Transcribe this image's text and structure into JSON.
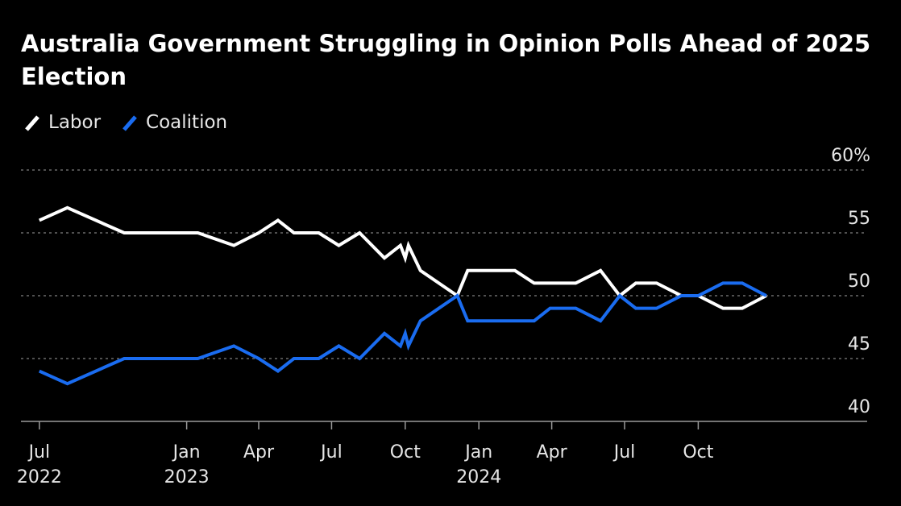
{
  "title": "Australia Government Struggling in Opinion Polls Ahead of 2025 Election",
  "chart_data": {
    "type": "line",
    "title": "Australia Government Struggling in Opinion Polls Ahead of 2025 Election",
    "xlabel": "",
    "ylabel": "",
    "ylim": [
      40,
      60
    ],
    "y_ticks": [
      {
        "value": 40,
        "label": "40"
      },
      {
        "value": 45,
        "label": "45"
      },
      {
        "value": 50,
        "label": "50"
      },
      {
        "value": 55,
        "label": "55"
      },
      {
        "value": 60,
        "label": "60%"
      }
    ],
    "x_ticks": [
      {
        "date": "2022-07-01",
        "label": "Jul",
        "sublabel": "2022"
      },
      {
        "date": "2023-01-01",
        "label": "Jan",
        "sublabel": "2023"
      },
      {
        "date": "2023-04-01",
        "label": "Apr",
        "sublabel": ""
      },
      {
        "date": "2023-07-01",
        "label": "Jul",
        "sublabel": ""
      },
      {
        "date": "2023-10-01",
        "label": "Oct",
        "sublabel": ""
      },
      {
        "date": "2024-01-01",
        "label": "Jan",
        "sublabel": "2024"
      },
      {
        "date": "2024-04-01",
        "label": "Apr",
        "sublabel": ""
      },
      {
        "date": "2024-07-01",
        "label": "Jul",
        "sublabel": ""
      },
      {
        "date": "2024-10-01",
        "label": "Oct",
        "sublabel": ""
      }
    ],
    "xlim": [
      "2022-06-08",
      "2025-04-30"
    ],
    "grid": true,
    "legend_position": "top-left",
    "x": [
      "2022-07-01",
      "2022-08-05",
      "2022-10-15",
      "2023-01-15",
      "2023-03-01",
      "2023-04-01",
      "2023-04-25",
      "2023-05-15",
      "2023-06-15",
      "2023-07-10",
      "2023-08-05",
      "2023-09-05",
      "2023-09-25",
      "2023-10-01",
      "2023-10-05",
      "2023-10-20",
      "2023-12-05",
      "2023-12-18",
      "2024-02-15",
      "2024-03-10",
      "2024-03-30",
      "2024-05-01",
      "2024-06-01",
      "2024-06-25",
      "2024-07-15",
      "2024-08-10",
      "2024-09-10",
      "2024-10-01",
      "2024-11-01",
      "2024-11-25",
      "2024-12-25"
    ],
    "series": [
      {
        "name": "Labor",
        "color": "#ffffff",
        "values": [
          56,
          57,
          55,
          55,
          54,
          55,
          56,
          55,
          55,
          54,
          55,
          53,
          54,
          53,
          54,
          52,
          50,
          52,
          52,
          51,
          51,
          51,
          52,
          50,
          51,
          51,
          50,
          50,
          49,
          49,
          50
        ]
      },
      {
        "name": "Coalition",
        "color": "#1a6cf0",
        "values": [
          44,
          43,
          45,
          45,
          46,
          45,
          44,
          45,
          45,
          46,
          45,
          47,
          46,
          47,
          46,
          48,
          50,
          48,
          48,
          48,
          49,
          49,
          48,
          50,
          49,
          49,
          50,
          50,
          51,
          51,
          50
        ]
      }
    ]
  }
}
